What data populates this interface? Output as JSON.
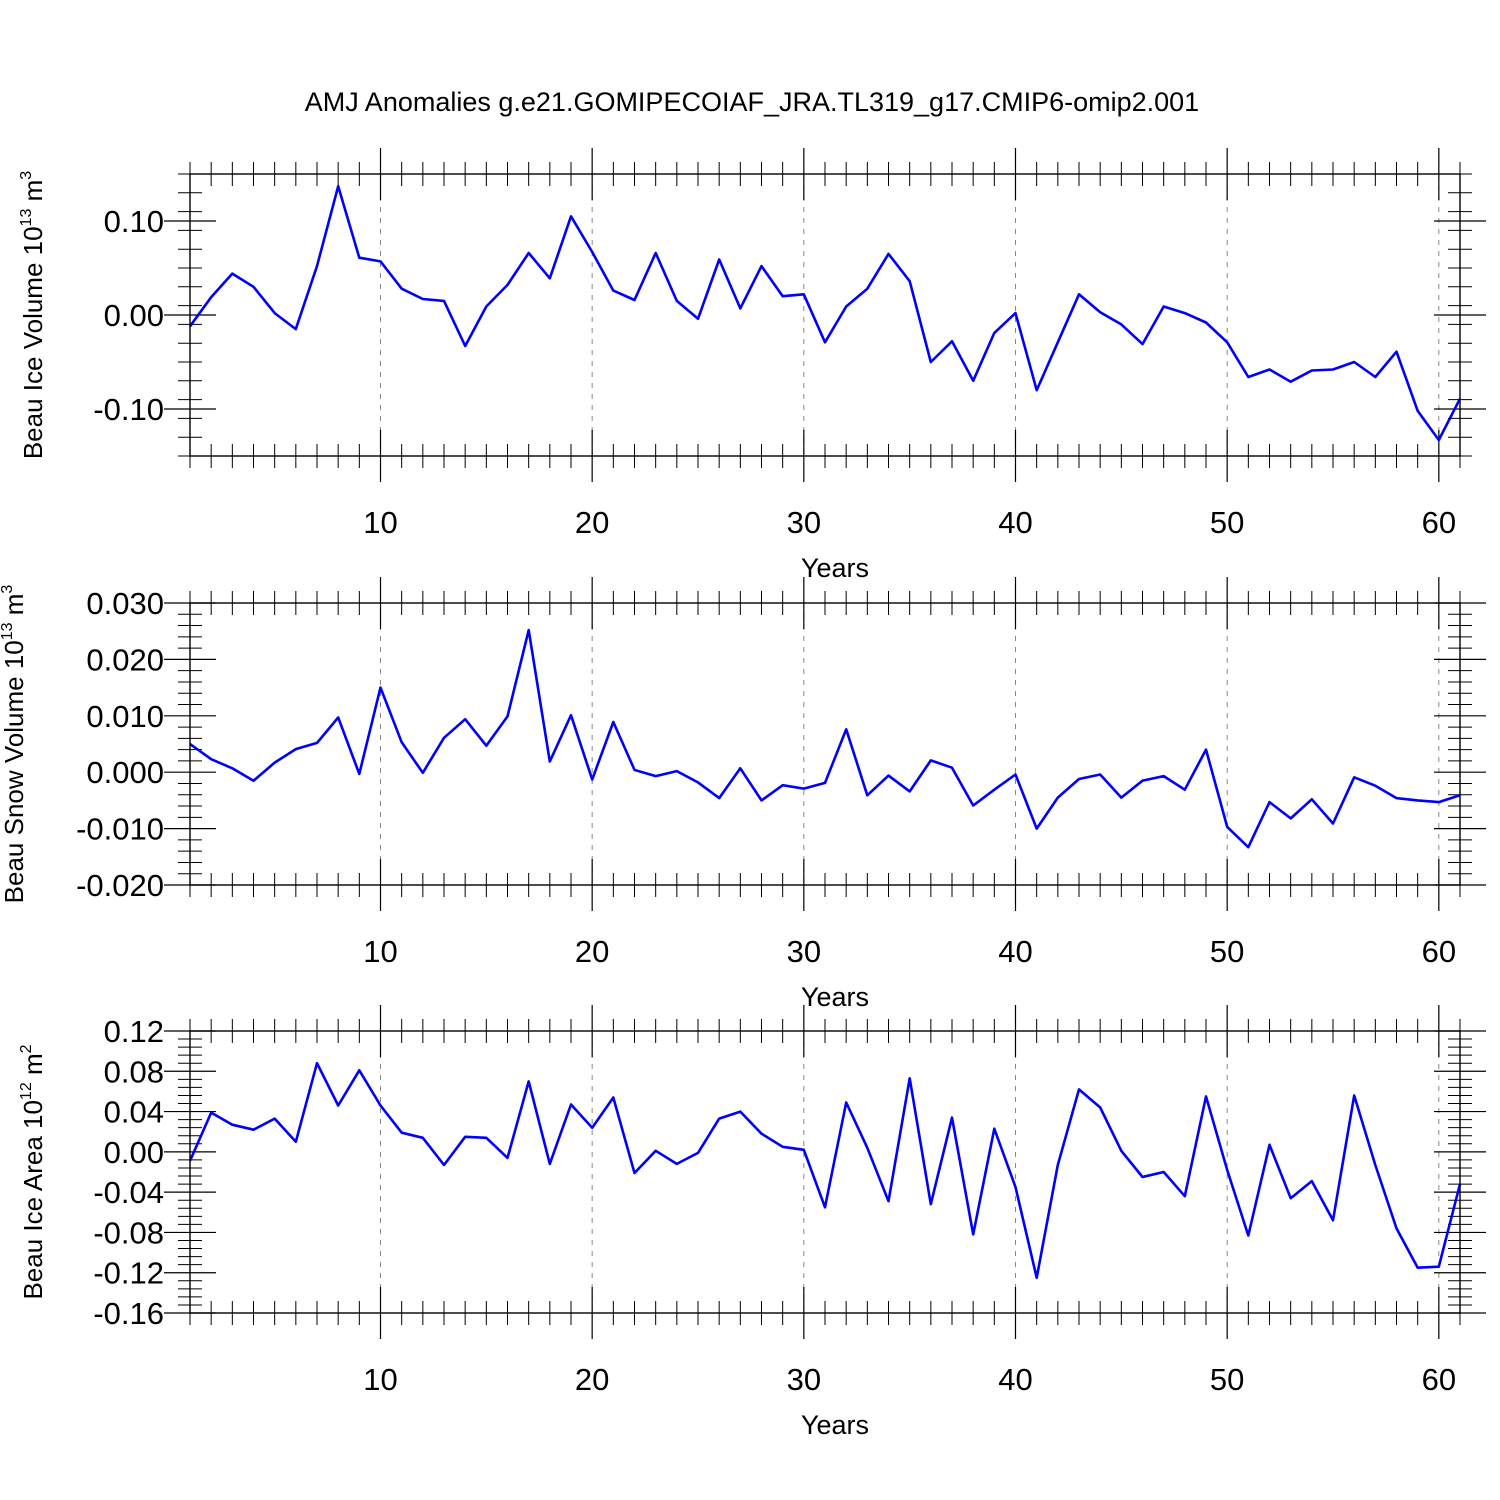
{
  "title": "AMJ Anomalies g.e21.GOMIPECOIAF_JRA.TL319_g17.CMIP6-omip2.001",
  "colors": {
    "line": "#0000ff",
    "axis": "#000000",
    "grid": "#888888"
  },
  "chart_data": [
    {
      "type": "line",
      "ylabel": "Beau Ice Volume 10",
      "ylabel_exp": "13",
      "ylabel_unit": " m",
      "ylabel_unit_exp": "3",
      "xlabel": "Years",
      "xlim": [
        1,
        61
      ],
      "ylim": [
        -0.15,
        0.15
      ],
      "x_ticks": [
        10,
        20,
        30,
        40,
        50,
        60
      ],
      "x_tick_labels": [
        "10",
        "20",
        "30",
        "40",
        "50",
        "60"
      ],
      "y_ticks": [
        0.1,
        0.0,
        -0.1
      ],
      "y_tick_labels": [
        "0.10",
        "0.00",
        "-0.10"
      ],
      "y_minor_step": 0.02,
      "grid_x": true,
      "series": [
        {
          "name": "Beau Ice Volume",
          "values": [
            -0.012,
            0.019,
            0.044,
            0.03,
            0.002,
            -0.015,
            0.052,
            0.137,
            0.061,
            0.057,
            0.028,
            0.017,
            0.015,
            -0.033,
            0.009,
            0.032,
            0.066,
            0.039,
            0.105,
            0.067,
            0.026,
            0.016,
            0.066,
            0.015,
            -0.004,
            0.059,
            0.007,
            0.052,
            0.02,
            0.022,
            -0.029,
            0.009,
            0.028,
            0.065,
            0.036,
            -0.05,
            -0.028,
            -0.07,
            -0.019,
            0.002,
            -0.08,
            -0.029,
            0.022,
            0.003,
            -0.01,
            -0.031,
            0.009,
            0.002,
            -0.008,
            -0.029,
            -0.066,
            -0.058,
            -0.071,
            -0.059,
            -0.058,
            -0.05,
            -0.066,
            -0.039,
            -0.102,
            -0.133,
            -0.089
          ]
        }
      ]
    },
    {
      "type": "line",
      "ylabel": "Beau Snow Volume 10",
      "ylabel_exp": "13",
      "ylabel_unit": " m",
      "ylabel_unit_exp": "3",
      "xlabel": "Years",
      "xlim": [
        1,
        61
      ],
      "ylim": [
        -0.02,
        0.03
      ],
      "x_ticks": [
        10,
        20,
        30,
        40,
        50,
        60
      ],
      "x_tick_labels": [
        "10",
        "20",
        "30",
        "40",
        "50",
        "60"
      ],
      "y_ticks": [
        0.03,
        0.02,
        0.01,
        0.0,
        -0.01,
        -0.02
      ],
      "y_tick_labels": [
        "0.030",
        "0.020",
        "0.010",
        "0.000",
        "-0.010",
        "-0.020"
      ],
      "y_minor_step": 0.002,
      "grid_x": true,
      "series": [
        {
          "name": "Beau Snow Volume",
          "values": [
            0.005,
            0.0023,
            0.0007,
            -0.0015,
            0.0017,
            0.0041,
            0.0052,
            0.0097,
            -0.0003,
            0.015,
            0.0053,
            -0.0001,
            0.0061,
            0.0094,
            0.0047,
            0.0099,
            0.0252,
            0.0019,
            0.0101,
            -0.0013,
            0.0089,
            0.0004,
            -0.0007,
            0.0002,
            -0.0018,
            -0.0046,
            0.0007,
            -0.005,
            -0.0023,
            -0.0029,
            -0.0019,
            0.0076,
            -0.0041,
            -0.0006,
            -0.0034,
            0.0021,
            0.0008,
            -0.0059,
            -0.0031,
            -0.0004,
            -0.01,
            -0.0045,
            -0.0012,
            -0.0004,
            -0.0045,
            -0.0015,
            -0.0007,
            -0.0031,
            0.004,
            -0.0097,
            -0.0133,
            -0.0053,
            -0.0082,
            -0.0048,
            -0.0091,
            -0.0009,
            -0.0024,
            -0.0046,
            -0.005,
            -0.0053,
            -0.0041
          ]
        }
      ]
    },
    {
      "type": "line",
      "ylabel": "Beau Ice Area 10",
      "ylabel_exp": "12",
      "ylabel_unit": " m",
      "ylabel_unit_exp": "2",
      "xlabel": "Years",
      "xlim": [
        1,
        61
      ],
      "ylim": [
        -0.16,
        0.12
      ],
      "x_ticks": [
        10,
        20,
        30,
        40,
        50,
        60
      ],
      "x_tick_labels": [
        "10",
        "20",
        "30",
        "40",
        "50",
        "60"
      ],
      "y_ticks": [
        0.12,
        0.08,
        0.04,
        0.0,
        -0.04,
        -0.08,
        -0.12,
        -0.16
      ],
      "y_tick_labels": [
        "0.12",
        "0.08",
        "0.04",
        "0.00",
        "-0.04",
        "-0.08",
        "-0.12",
        "-0.16"
      ],
      "y_minor_step": 0.008,
      "grid_x": true,
      "series": [
        {
          "name": "Beau Ice Area",
          "values": [
            -0.009,
            0.039,
            0.027,
            0.022,
            0.033,
            0.01,
            0.088,
            0.046,
            0.081,
            0.046,
            0.019,
            0.014,
            -0.013,
            0.015,
            0.014,
            -0.006,
            0.07,
            -0.012,
            0.047,
            0.024,
            0.054,
            -0.021,
            0.001,
            -0.012,
            -0.001,
            0.033,
            0.04,
            0.018,
            0.005,
            0.002,
            -0.055,
            0.049,
            0.004,
            -0.049,
            0.073,
            -0.052,
            0.034,
            -0.082,
            0.023,
            -0.035,
            -0.125,
            -0.013,
            0.062,
            0.044,
            0.001,
            -0.025,
            -0.02,
            -0.044,
            0.055,
            -0.018,
            -0.083,
            0.007,
            -0.046,
            -0.029,
            -0.068,
            0.056,
            -0.013,
            -0.076,
            -0.115,
            -0.114,
            -0.032
          ]
        }
      ]
    }
  ]
}
